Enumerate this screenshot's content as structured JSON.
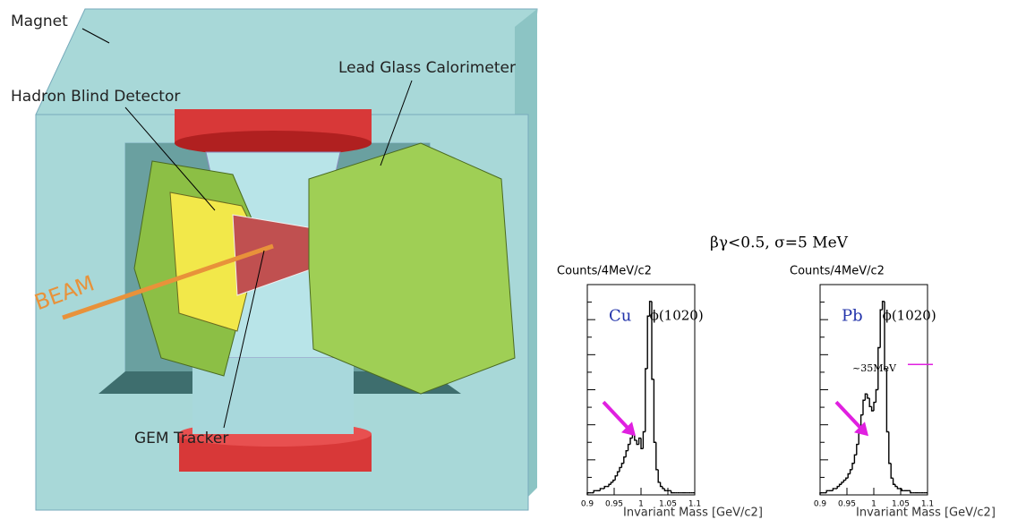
{
  "diagram": {
    "labels": [
      "Magnet",
      "Lead Glass Calorimeter",
      "Hadron Blind Detector",
      "BEAM",
      "GEM Tracker"
    ]
  },
  "figure_title": "βγ<0.5, σ=5 MeV",
  "chart_data": [
    {
      "type": "histogram",
      "ylabel": "Counts/4MeV/c2",
      "xlabel": "Invariant Mass [GeV/c2]",
      "annotations": [
        "Cu",
        "ϕ(1020)"
      ],
      "color": "#000000",
      "bins": [
        0.9,
        0.904,
        0.908,
        0.912,
        0.916,
        0.92,
        0.924,
        0.928,
        0.932,
        0.936,
        0.94,
        0.944,
        0.948,
        0.952,
        0.956,
        0.96,
        0.964,
        0.968,
        0.972,
        0.976,
        0.98,
        0.984,
        0.988,
        0.992,
        0.996,
        1,
        1.004,
        1.008,
        1.012,
        1.016,
        1.02,
        1.024,
        1.028,
        1.032,
        1.036,
        1.04,
        1.044,
        1.048,
        1.052,
        1.056,
        1.06,
        1.064,
        1.068,
        1.072,
        1.076,
        1.08,
        1.084,
        1.088,
        1.092,
        1.096,
        1.1
      ],
      "values": [
        1,
        1,
        1,
        2,
        2,
        2,
        3,
        3,
        4,
        4,
        5,
        6,
        7,
        9,
        11,
        13,
        15,
        18,
        21,
        24,
        27,
        29,
        26,
        24,
        27,
        22,
        30,
        60,
        85,
        92,
        55,
        25,
        12,
        6,
        4,
        3,
        2,
        2,
        2,
        1,
        1,
        1,
        1,
        1,
        1,
        1,
        1,
        1,
        1,
        1
      ],
      "xlim": [
        0.9,
        1.1
      ],
      "xticks": [
        0.9,
        0.95,
        1,
        1.05,
        1.1
      ],
      "ylim": [
        0,
        100
      ]
    },
    {
      "type": "histogram",
      "ylabel": "Counts/4MeV/c2",
      "xlabel": "Invariant Mass [GeV/c2]",
      "annotations": [
        "Pb",
        "ϕ(1020)",
        "~35MeV"
      ],
      "color": "#000000",
      "bins": [
        0.9,
        0.904,
        0.908,
        0.912,
        0.916,
        0.92,
        0.924,
        0.928,
        0.932,
        0.936,
        0.94,
        0.944,
        0.948,
        0.952,
        0.956,
        0.96,
        0.964,
        0.968,
        0.972,
        0.976,
        0.98,
        0.984,
        0.988,
        0.992,
        0.996,
        1,
        1.004,
        1.008,
        1.012,
        1.016,
        1.02,
        1.024,
        1.028,
        1.032,
        1.036,
        1.04,
        1.044,
        1.048,
        1.052,
        1.056,
        1.06,
        1.064,
        1.068,
        1.072,
        1.076,
        1.08,
        1.084,
        1.088,
        1.092,
        1.096,
        1.1
      ],
      "values": [
        1,
        1,
        1,
        2,
        2,
        2,
        3,
        3,
        4,
        5,
        6,
        7,
        8,
        10,
        12,
        15,
        19,
        24,
        30,
        38,
        45,
        48,
        46,
        42,
        40,
        44,
        50,
        70,
        88,
        92,
        60,
        30,
        15,
        8,
        5,
        4,
        3,
        3,
        2,
        2,
        2,
        2,
        1,
        1,
        1,
        1,
        1,
        1,
        1,
        1
      ],
      "xlim": [
        0.9,
        1.1
      ],
      "xticks": [
        0.9,
        0.95,
        1,
        1.05,
        1.1
      ],
      "ylim": [
        0,
        100
      ]
    }
  ]
}
